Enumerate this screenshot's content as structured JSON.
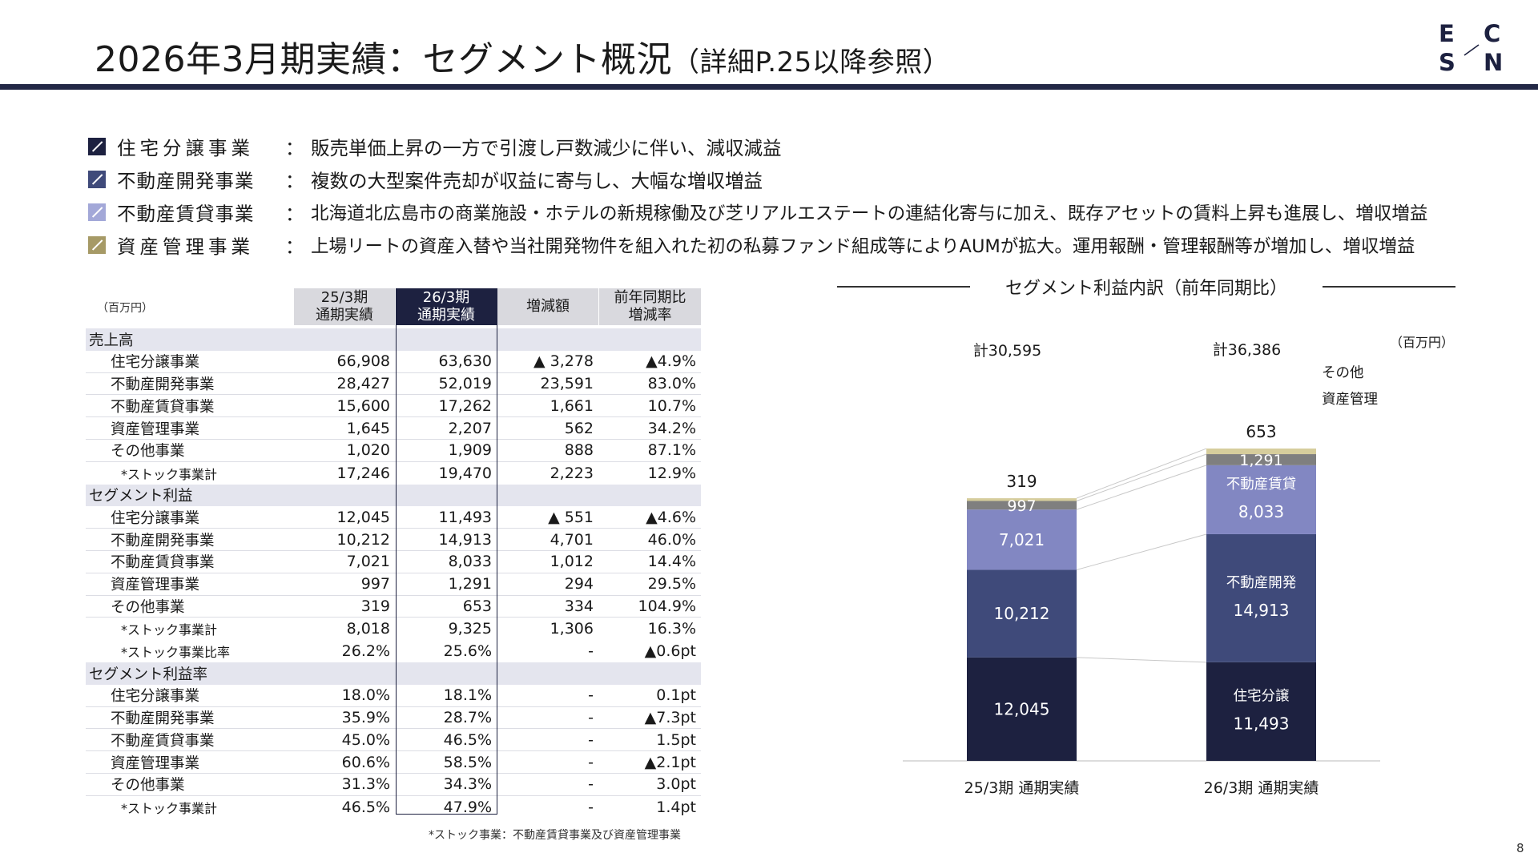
{
  "header": {
    "title": "2026年3月期実績：セグメント概況",
    "title_note": "（詳細P.25以降参照）",
    "logo": {
      "e": "E",
      "c": "C",
      "s": "S",
      "n": "N"
    }
  },
  "bullets": [
    {
      "segment": "住宅分譲事業",
      "text": "販売単価上昇の一方で引渡し戸数減少に伴い、減収減益",
      "color": "#1d2140"
    },
    {
      "segment": "不動産開発事業",
      "text": "複数の大型案件売却が収益に寄与し、大幅な増収増益",
      "color": "#3f4a7a"
    },
    {
      "segment": "不動産賃貸事業",
      "text": "北海道北広島市の商業施設・ホテルの新規稼働及び芝リアルエステートの連結化寄与に加え、既存アセットの賃料上昇も進展し、増収増益",
      "color": "#a3a8d8"
    },
    {
      "segment": "資産管理事業",
      "text": "上場リートの資産入替や当社開発物件を組入れた初の私募ファンド組成等によりAUMが拡大。運用報酬・管理報酬等が増加し、増収増益",
      "color": "#a69a66"
    }
  ],
  "bullet_colon": "：",
  "table": {
    "unit": "（百万円）",
    "headers": {
      "prev": [
        "25/3期",
        "通期実績"
      ],
      "curr": [
        "26/3期",
        "通期実績"
      ],
      "diff": [
        "増減額"
      ],
      "rate": [
        "前年同期比",
        "増減率"
      ]
    },
    "rows": [
      {
        "type": "section",
        "label": "売上高"
      },
      {
        "type": "item",
        "label": "住宅分譲事業",
        "prev": "66,908",
        "curr": "63,630",
        "diff": "▲ 3,278",
        "rate": "▲4.9%"
      },
      {
        "type": "item",
        "label": "不動産開発事業",
        "prev": "28,427",
        "curr": "52,019",
        "diff": "23,591",
        "rate": "83.0%"
      },
      {
        "type": "item",
        "label": "不動産賃貸事業",
        "prev": "15,600",
        "curr": "17,262",
        "diff": "1,661",
        "rate": "10.7%"
      },
      {
        "type": "item",
        "label": "資産管理事業",
        "prev": "1,645",
        "curr": "2,207",
        "diff": "562",
        "rate": "34.2%"
      },
      {
        "type": "item",
        "label": "その他事業",
        "prev": "1,020",
        "curr": "1,909",
        "diff": "888",
        "rate": "87.1%"
      },
      {
        "type": "small",
        "label": "*ストック事業計",
        "prev": "17,246",
        "curr": "19,470",
        "diff": "2,223",
        "rate": "12.9%"
      },
      {
        "type": "section",
        "label": "セグメント利益"
      },
      {
        "type": "item",
        "label": "住宅分譲事業",
        "prev": "12,045",
        "curr": "11,493",
        "diff": "▲ 551",
        "rate": "▲4.6%"
      },
      {
        "type": "item",
        "label": "不動産開発事業",
        "prev": "10,212",
        "curr": "14,913",
        "diff": "4,701",
        "rate": "46.0%"
      },
      {
        "type": "item",
        "label": "不動産賃貸事業",
        "prev": "7,021",
        "curr": "8,033",
        "diff": "1,012",
        "rate": "14.4%"
      },
      {
        "type": "item",
        "label": "資産管理事業",
        "prev": "997",
        "curr": "1,291",
        "diff": "294",
        "rate": "29.5%"
      },
      {
        "type": "item",
        "label": "その他事業",
        "prev": "319",
        "curr": "653",
        "diff": "334",
        "rate": "104.9%"
      },
      {
        "type": "small",
        "label": "*ストック事業計",
        "prev": "8,018",
        "curr": "9,325",
        "diff": "1,306",
        "rate": "16.3%"
      },
      {
        "type": "small",
        "label": "*ストック事業比率",
        "prev": "26.2%",
        "curr": "25.6%",
        "diff": "-",
        "rate": "▲0.6pt"
      },
      {
        "type": "section",
        "label": "セグメント利益率"
      },
      {
        "type": "item",
        "label": "住宅分譲事業",
        "prev": "18.0%",
        "curr": "18.1%",
        "diff": "-",
        "rate": "0.1pt"
      },
      {
        "type": "item",
        "label": "不動産開発事業",
        "prev": "35.9%",
        "curr": "28.7%",
        "diff": "-",
        "rate": "▲7.3pt"
      },
      {
        "type": "item",
        "label": "不動産賃貸事業",
        "prev": "45.0%",
        "curr": "46.5%",
        "diff": "-",
        "rate": "1.5pt"
      },
      {
        "type": "item",
        "label": "資産管理事業",
        "prev": "60.6%",
        "curr": "58.5%",
        "diff": "-",
        "rate": "▲2.1pt"
      },
      {
        "type": "item",
        "label": "その他事業",
        "prev": "31.3%",
        "curr": "34.3%",
        "diff": "-",
        "rate": "3.0pt"
      },
      {
        "type": "small",
        "label": "*ストック事業計",
        "prev": "46.5%",
        "curr": "47.9%",
        "diff": "-",
        "rate": "1.4pt"
      }
    ],
    "footnote": "*ストック事業：不動産賃貸事業及び資産管理事業"
  },
  "chart_data": {
    "type": "bar",
    "stacked": true,
    "title": "セグメント利益内訳（前年同期比）",
    "unit": "（百万円）",
    "categories": [
      "25/3期 通期実績",
      "26/3期 通期実績"
    ],
    "totals": [
      "計30,595",
      "計36,386"
    ],
    "series": [
      {
        "name": "住宅分譲",
        "values": [
          12045,
          11493
        ],
        "labels": [
          "12,045",
          "11,493"
        ],
        "color": "#1d2140"
      },
      {
        "name": "不動産開発",
        "values": [
          10212,
          14913
        ],
        "labels": [
          "10,212",
          "14,913"
        ],
        "color": "#3f4a7a"
      },
      {
        "name": "不動産賃貸",
        "values": [
          7021,
          8033
        ],
        "labels": [
          "7,021",
          "8,033"
        ],
        "color": "#8287c2"
      },
      {
        "name": "資産管理",
        "values": [
          997,
          1291
        ],
        "labels": [
          "997",
          "1,291"
        ],
        "color": "#7f7f7f"
      },
      {
        "name": "その他",
        "values": [
          319,
          653
        ],
        "labels": [
          "319",
          "653"
        ],
        "color": "#d6cd9c"
      }
    ],
    "legend_placement": "right-of-last-bar",
    "grid": false
  },
  "page_number": "8"
}
